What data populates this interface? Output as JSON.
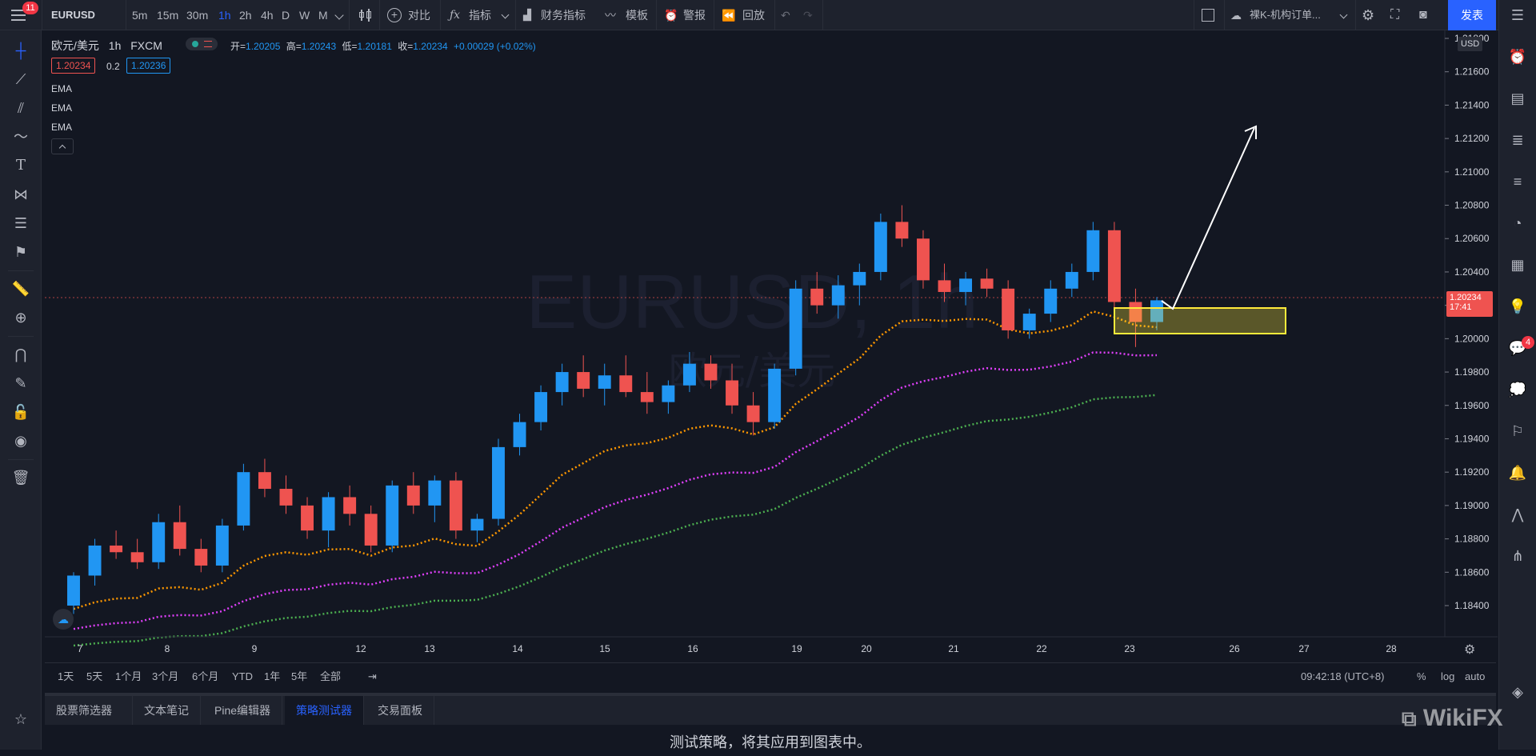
{
  "topbar": {
    "badge": "11",
    "symbol": "EURUSD",
    "timeframes": [
      "5m",
      "15m",
      "30m",
      "1h",
      "2h",
      "4h",
      "D",
      "W",
      "M"
    ],
    "active_timeframe": "1h",
    "compare_label": "对比",
    "indicators_label": "指标",
    "financials_label": "财务指标",
    "templates_label": "模板",
    "alert_label": "警报",
    "replay_label": "回放",
    "layout_name": "裸K-机构订单...",
    "publish_label": "发表"
  },
  "legend": {
    "title": "欧元/美元",
    "interval": "1h",
    "exchange": "FXCM",
    "open_label": "开=",
    "open": "1.20205",
    "high_label": "高=",
    "high": "1.20243",
    "low_label": "低=",
    "low": "1.20181",
    "close_label": "收=",
    "close": "1.20234",
    "change": "+0.00029 (+0.02%)",
    "bid": "1.20234",
    "spread": "0.2",
    "ask": "1.20236",
    "indicators": [
      "EMA",
      "EMA",
      "EMA"
    ]
  },
  "watermark": {
    "main": "EURUSD, 1h",
    "sub": "欧元/美元"
  },
  "price_axis": {
    "currency": "USD",
    "ticks": [
      "1.21800",
      "1.21600",
      "1.21400",
      "1.21200",
      "1.21000",
      "1.20800",
      "1.20600",
      "1.20400",
      "1.20200",
      "1.20000",
      "1.19800",
      "1.19600",
      "1.19400",
      "1.19200",
      "1.19000",
      "1.18800",
      "1.18600",
      "1.18400"
    ],
    "current_price": "1.20234",
    "countdown": "17:41"
  },
  "time_axis": {
    "ticks": [
      "7",
      "8",
      "9",
      "12",
      "13",
      "14",
      "15",
      "16",
      "19",
      "20",
      "21",
      "22",
      "23",
      "26",
      "27",
      "28"
    ]
  },
  "bottombar": {
    "ranges": [
      "1天",
      "5天",
      "1个月",
      "3个月",
      "6个月",
      "YTD",
      "1年",
      "5年",
      "全部"
    ],
    "clock": "09:42:18 (UTC+8)",
    "percent_label": "%",
    "log_label": "log",
    "auto_label": "auto"
  },
  "panel": {
    "tabs": [
      "股票筛选器",
      "文本笔记",
      "Pine编辑器",
      "策略测试器",
      "交易面板"
    ],
    "active_tab": "策略测试器",
    "message": "测试策略，将其应用到图表中。"
  },
  "rightbar": {
    "chat_badge": "4"
  },
  "brand": "WikiFX",
  "colors": {
    "up": "#2196f3",
    "down": "#ef5350",
    "ema_fast": "#ff9800",
    "ema_mid": "#e040fb",
    "ema_slow": "#4caf50",
    "accent": "#2962ff",
    "zone": "#ffeb3b"
  },
  "chart_data": {
    "type": "candlestick",
    "x_start": "7",
    "x_end": "23",
    "ohlc_approx": [
      [
        1.184,
        1.186,
        1.1835,
        1.1858
      ],
      [
        1.1858,
        1.188,
        1.1852,
        1.1876
      ],
      [
        1.1876,
        1.1885,
        1.1868,
        1.1872
      ],
      [
        1.1872,
        1.188,
        1.1862,
        1.1866
      ],
      [
        1.1866,
        1.1895,
        1.1862,
        1.189
      ],
      [
        1.189,
        1.19,
        1.187,
        1.1874
      ],
      [
        1.1874,
        1.188,
        1.186,
        1.1864
      ],
      [
        1.1864,
        1.1892,
        1.186,
        1.1888
      ],
      [
        1.1888,
        1.1925,
        1.1885,
        1.192
      ],
      [
        1.192,
        1.1928,
        1.1905,
        1.191
      ],
      [
        1.191,
        1.1918,
        1.1895,
        1.19
      ],
      [
        1.19,
        1.1905,
        1.188,
        1.1885
      ],
      [
        1.1885,
        1.1908,
        1.1875,
        1.1905
      ],
      [
        1.1905,
        1.1912,
        1.1888,
        1.1895
      ],
      [
        1.1895,
        1.19,
        1.1872,
        1.1876
      ],
      [
        1.1876,
        1.1915,
        1.1872,
        1.1912
      ],
      [
        1.1912,
        1.192,
        1.1895,
        1.19
      ],
      [
        1.19,
        1.1918,
        1.189,
        1.1915
      ],
      [
        1.1915,
        1.192,
        1.188,
        1.1885
      ],
      [
        1.1885,
        1.1895,
        1.1878,
        1.1892
      ],
      [
        1.1892,
        1.194,
        1.1888,
        1.1935
      ],
      [
        1.1935,
        1.1955,
        1.193,
        1.195
      ],
      [
        1.195,
        1.1972,
        1.1945,
        1.1968
      ],
      [
        1.1968,
        1.1985,
        1.196,
        1.198
      ],
      [
        1.198,
        1.199,
        1.1965,
        1.197
      ],
      [
        1.197,
        1.1985,
        1.196,
        1.1978
      ],
      [
        1.1978,
        1.199,
        1.1965,
        1.1968
      ],
      [
        1.1968,
        1.198,
        1.1955,
        1.1962
      ],
      [
        1.1962,
        1.1975,
        1.1955,
        1.1972
      ],
      [
        1.1972,
        1.1992,
        1.1968,
        1.1985
      ],
      [
        1.1985,
        1.199,
        1.197,
        1.1975
      ],
      [
        1.1975,
        1.1985,
        1.1955,
        1.196
      ],
      [
        1.196,
        1.1968,
        1.1942,
        1.195
      ],
      [
        1.195,
        1.1985,
        1.1946,
        1.1982
      ],
      [
        1.1982,
        1.2035,
        1.1978,
        1.203
      ],
      [
        1.203,
        1.204,
        1.2015,
        1.202
      ],
      [
        1.202,
        1.2038,
        1.2012,
        1.2032
      ],
      [
        1.2032,
        1.2045,
        1.202,
        1.204
      ],
      [
        1.204,
        1.2075,
        1.2035,
        1.207
      ],
      [
        1.207,
        1.208,
        1.2055,
        1.206
      ],
      [
        1.206,
        1.2065,
        1.203,
        1.2035
      ],
      [
        1.2035,
        1.2045,
        1.2022,
        1.2028
      ],
      [
        1.2028,
        1.204,
        1.202,
        1.2036
      ],
      [
        1.2036,
        1.2042,
        1.2025,
        1.203
      ],
      [
        1.203,
        1.2035,
        1.2,
        1.2005
      ],
      [
        1.2005,
        1.2018,
        1.2,
        1.2015
      ],
      [
        1.2015,
        1.2035,
        1.201,
        1.203
      ],
      [
        1.203,
        1.2045,
        1.2025,
        1.204
      ],
      [
        1.204,
        1.207,
        1.2035,
        1.2065
      ],
      [
        1.2065,
        1.207,
        1.2018,
        1.2022
      ],
      [
        1.2022,
        1.203,
        1.1995,
        1.201
      ],
      [
        1.201,
        1.2025,
        1.2005,
        1.2023
      ]
    ]
  }
}
